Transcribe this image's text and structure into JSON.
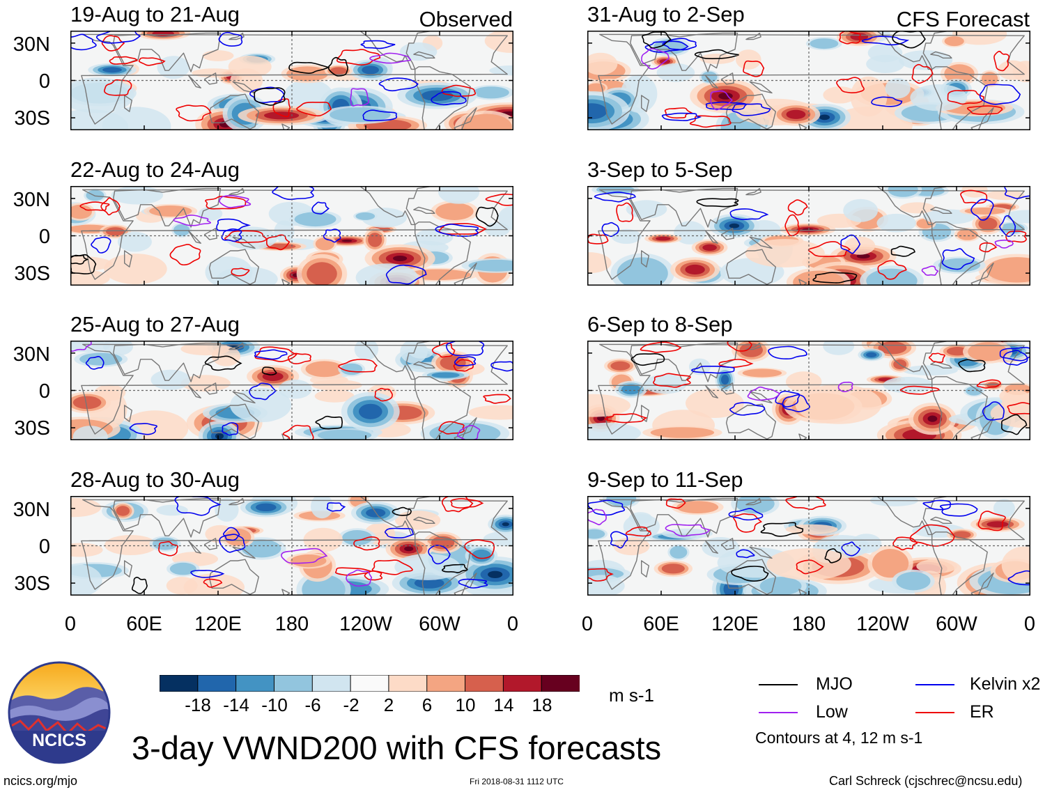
{
  "figure": {
    "title": "3-day VWND200 with CFS forecasts",
    "observed_label": "Observed",
    "forecast_label": "CFS Forecast",
    "site": "ncics.org/mjo",
    "timestamp": "Fri 2018-08-31 1112 UTC",
    "author": "Carl Schreck (cjschrec@ncsu.edu)",
    "logo_text": "NCICS",
    "colors": {
      "mjo": "#000000",
      "low": "#a020f0",
      "kelvin": "#0000ee",
      "er": "#ee0000",
      "coast": "#777777",
      "panel_bg": "#f4f5f5"
    }
  },
  "chart_data": {
    "type": "heatmap",
    "variable": "VWND200",
    "units": "m s-1",
    "y_ticks": [
      "30N",
      "0",
      "30S"
    ],
    "x_ticks": [
      "0",
      "60E",
      "120E",
      "180",
      "120W",
      "60W",
      "0"
    ],
    "colorbar": {
      "ticks": [
        "-18",
        "-14",
        "-10",
        "-6",
        "-2",
        "2",
        "6",
        "10",
        "14",
        "18"
      ],
      "colors": [
        "#053061",
        "#2166ac",
        "#4393c3",
        "#92c5de",
        "#d1e5f0",
        "#fafafa",
        "#fddbc7",
        "#f4a582",
        "#d6604d",
        "#b2182b",
        "#67001f"
      ]
    },
    "legend": {
      "mjo": "MJO",
      "low": "Low",
      "kelvin": "Kelvin x2",
      "er": "ER",
      "contours_note": "Contours at 4, 12 m s-1"
    },
    "panels": [
      {
        "title": "19-Aug to 21-Aug",
        "source": "Observed"
      },
      {
        "title": "22-Aug to 24-Aug",
        "source": "Observed"
      },
      {
        "title": "25-Aug to 27-Aug",
        "source": "Observed"
      },
      {
        "title": "28-Aug to 30-Aug",
        "source": "Observed"
      },
      {
        "title": "31-Aug to 2-Sep",
        "source": "CFS Forecast"
      },
      {
        "title": "3-Sep to 5-Sep",
        "source": "CFS Forecast"
      },
      {
        "title": "6-Sep to 8-Sep",
        "source": "CFS Forecast"
      },
      {
        "title": "9-Sep to 11-Sep",
        "source": "CFS Forecast"
      }
    ]
  }
}
